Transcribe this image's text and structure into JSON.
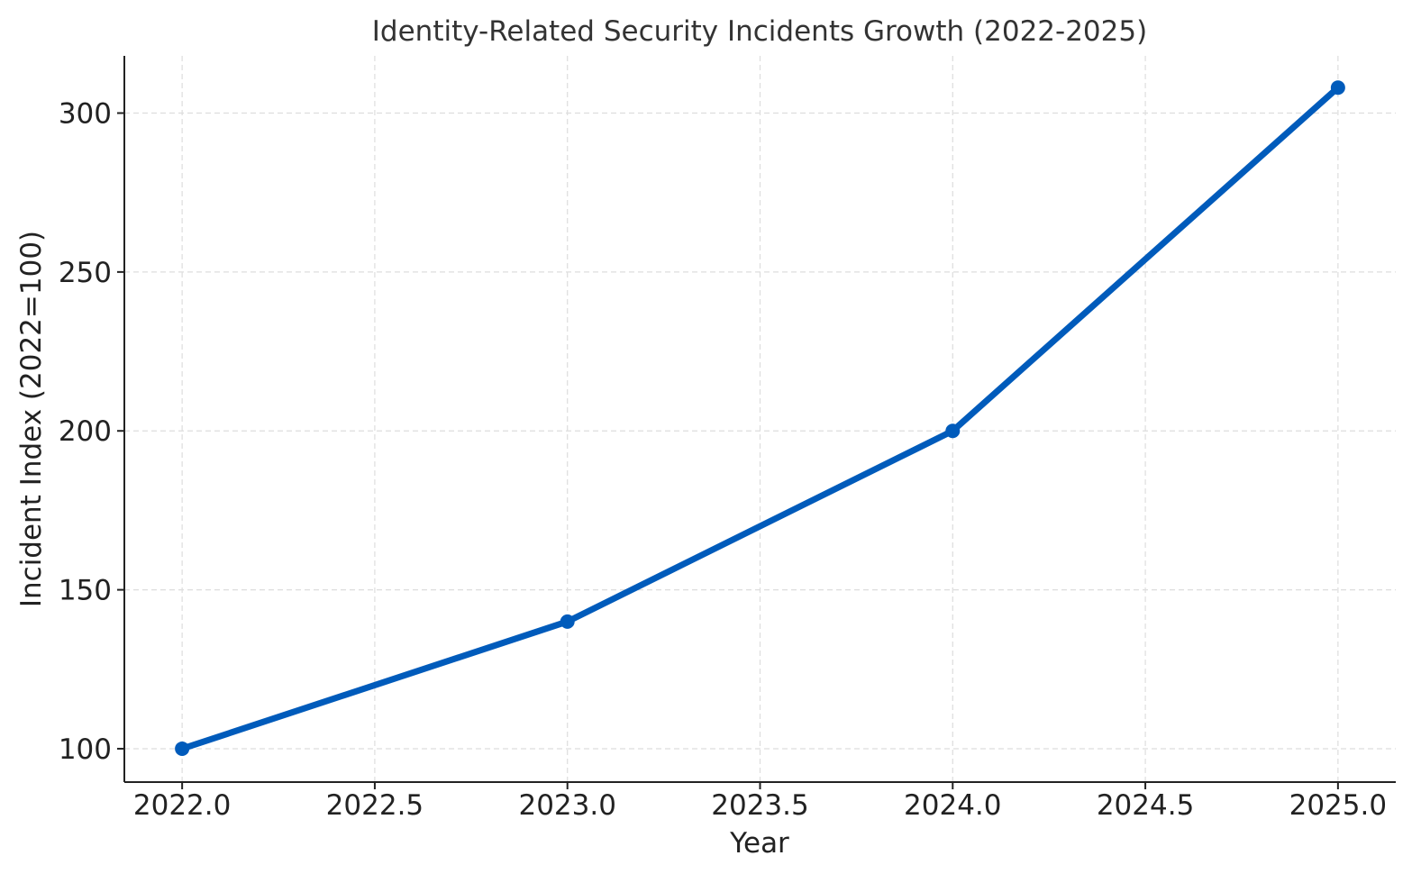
{
  "chart_data": {
    "type": "line",
    "title": "Identity-Related Security Incidents Growth (2022-2025)",
    "xlabel": "Year",
    "ylabel": "Incident Index (2022=100)",
    "x": [
      2022,
      2023,
      2024,
      2025
    ],
    "series": [
      {
        "values": [
          100,
          140,
          200,
          308
        ],
        "color": "#005bbb"
      }
    ],
    "xlim": [
      2021.85,
      2025.15
    ],
    "ylim": [
      89.5,
      318
    ],
    "x_ticks": [
      2022.0,
      2022.5,
      2023.0,
      2023.5,
      2024.0,
      2024.5,
      2025.0
    ],
    "x_tick_labels": [
      "2022.0",
      "2022.5",
      "2023.0",
      "2023.5",
      "2024.0",
      "2024.5",
      "2025.0"
    ],
    "y_ticks": [
      100,
      150,
      200,
      250,
      300
    ],
    "y_tick_labels": [
      "100",
      "150",
      "200",
      "250",
      "300"
    ],
    "grid": true,
    "legend": "none"
  }
}
